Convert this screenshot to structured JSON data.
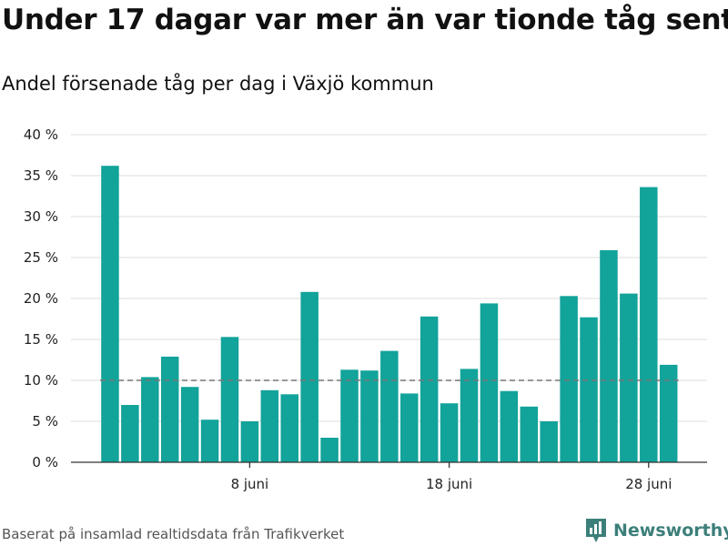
{
  "title": "Under 17 dagar var mer än var tionde tåg sent",
  "subtitle": "Andel försenade tåg per dag i Växjö kommun",
  "footer": "Baserat på insamlad realtidsdata från Trafikverket",
  "brand": {
    "name": "Newsworthy",
    "icon": "newsworthy-logo-icon",
    "color": "#3c7f7a"
  },
  "colors": {
    "bar": "#12a39a",
    "threshold_line": "#777777",
    "grid": "#dddddd"
  },
  "chart_data": {
    "type": "bar",
    "x_unit": "day of June",
    "x": [
      1,
      2,
      3,
      4,
      5,
      6,
      7,
      8,
      9,
      10,
      11,
      12,
      13,
      14,
      15,
      16,
      17,
      18,
      19,
      20,
      21,
      22,
      23,
      24,
      25,
      26,
      27,
      28,
      29
    ],
    "values": [
      36.2,
      7.0,
      10.4,
      12.9,
      9.2,
      5.2,
      15.3,
      5.0,
      8.8,
      8.3,
      20.8,
      3.0,
      11.3,
      11.2,
      13.6,
      8.4,
      17.8,
      7.2,
      11.4,
      19.4,
      8.7,
      6.8,
      5.0,
      20.3,
      17.7,
      25.9,
      20.6,
      33.6,
      11.9
    ],
    "ylim": [
      0,
      40
    ],
    "yticks": [
      0,
      5,
      10,
      15,
      20,
      25,
      30,
      35,
      40
    ],
    "ytick_labels": [
      "0 %",
      "5 %",
      "10 %",
      "15 %",
      "20 %",
      "25 %",
      "30 %",
      "35 %",
      "40 %"
    ],
    "xticks": [
      8,
      18,
      28
    ],
    "xtick_labels": [
      "8 juni",
      "18 juni",
      "28 juni"
    ],
    "reference_line": {
      "value": 10,
      "style": "dashed"
    },
    "grid": true
  }
}
